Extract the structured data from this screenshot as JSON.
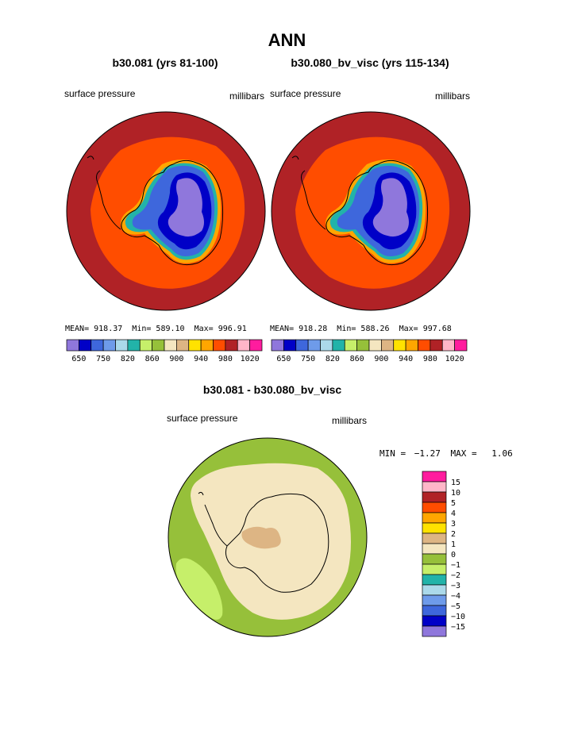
{
  "figure": {
    "title": "ANN"
  },
  "panels": [
    {
      "title": "b30.081 (yrs 81-100)",
      "left_label": "surface pressure",
      "right_label": "millibars",
      "stats": {
        "mean": "918.37",
        "min": "589.10",
        "max": "996.91"
      }
    },
    {
      "title": "b30.080_bv_visc (yrs 115-134)",
      "left_label": "surface pressure",
      "right_label": "millibars",
      "stats": {
        "mean": "918.28",
        "min": "588.26",
        "max": "997.68"
      }
    }
  ],
  "diff_panel": {
    "title": "b30.081 - b30.080_bv_visc",
    "left_label": "surface pressure",
    "right_label": "millibars",
    "min_label": "MIN =",
    "min_value": "−1.27",
    "max_label": "MAX =",
    "max_value": "1.06"
  },
  "stats_labels": {
    "mean": "MEAN=",
    "min": "Min=",
    "max": "Max="
  },
  "chart_data": [
    {
      "type": "heatmap",
      "projection": "south polar stereographic",
      "title": "b30.081 (yrs 81-100)",
      "variable": "surface pressure",
      "units": "millibars",
      "mean": 918.37,
      "min": 589.1,
      "max": 996.91,
      "colorbar_tick_labels": [
        "650",
        "750",
        "820",
        "860",
        "900",
        "940",
        "980",
        "1020"
      ],
      "colorbar_colors": [
        "#8f77dc",
        "#0000c7",
        "#3e67dc",
        "#6e9bea",
        "#abd9ea",
        "#22b3a9",
        "#c6ef6a",
        "#96c03a",
        "#f4e6c0",
        "#ddb584",
        "#ffe200",
        "#ffa600",
        "#ff4d00",
        "#b02226",
        "#ffb6c8",
        "#ff1c9e"
      ]
    },
    {
      "type": "heatmap",
      "projection": "south polar stereographic",
      "title": "b30.080_bv_visc (yrs 115-134)",
      "variable": "surface pressure",
      "units": "millibars",
      "mean": 918.28,
      "min": 588.26,
      "max": 997.68,
      "colorbar_tick_labels": [
        "650",
        "750",
        "820",
        "860",
        "900",
        "940",
        "980",
        "1020"
      ],
      "colorbar_colors": [
        "#8f77dc",
        "#0000c7",
        "#3e67dc",
        "#6e9bea",
        "#abd9ea",
        "#22b3a9",
        "#c6ef6a",
        "#96c03a",
        "#f4e6c0",
        "#ddb584",
        "#ffe200",
        "#ffa600",
        "#ff4d00",
        "#b02226",
        "#ffb6c8",
        "#ff1c9e"
      ]
    },
    {
      "type": "heatmap",
      "projection": "south polar stereographic",
      "title": "b30.081 - b30.080_bv_visc",
      "variable": "surface pressure",
      "units": "millibars",
      "min": -1.27,
      "max": 1.06,
      "colorbar_tick_labels": [
        "15",
        "10",
        "5",
        "4",
        "3",
        "2",
        "1",
        "0",
        "−1",
        "−2",
        "−3",
        "−4",
        "−5",
        "−10",
        "−15"
      ],
      "colorbar_colors": [
        "#ff1c9e",
        "#ffb6c8",
        "#b02226",
        "#ff4d00",
        "#ffa600",
        "#ffe200",
        "#ddb584",
        "#f4e6c0",
        "#96c03a",
        "#c6ef6a",
        "#22b3a9",
        "#abd9ea",
        "#6e9bea",
        "#3e67dc",
        "#0000c7",
        "#8f77dc"
      ]
    }
  ]
}
